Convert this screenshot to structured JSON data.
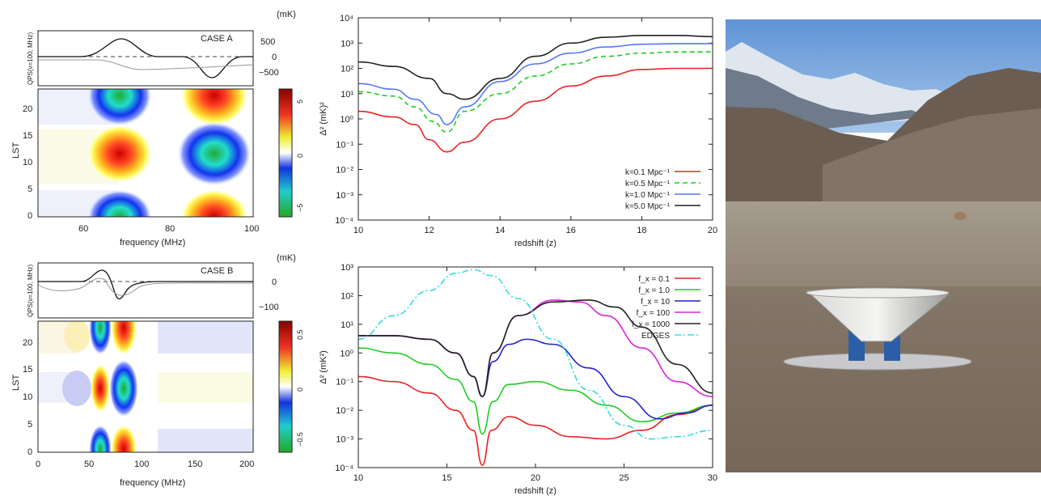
{
  "panels": {
    "tl": {
      "line_label": "CASE A",
      "unit": "(mK)",
      "line_ylabel": "QPS(ν=100, MHz)",
      "line_ticks": [
        "500",
        "0",
        "−500"
      ],
      "heat_ylabel": "LST",
      "heat_yticks": [
        "20",
        "15",
        "10",
        "5",
        "0"
      ],
      "xticks": [
        "60",
        "80",
        "100"
      ],
      "colorbar_ticks": [
        "5",
        "0",
        "−5"
      ],
      "xlabel": "frequency (MHz)"
    },
    "bl": {
      "line_label": "CASE B",
      "unit": "(mK)",
      "line_ylabel": "QPS(ν=100, MHz)",
      "line_ticks": [
        "0",
        "−100"
      ],
      "heat_ylabel": "LST",
      "heat_yticks": [
        "20",
        "15",
        "10",
        "5",
        "0"
      ],
      "xticks": [
        "0",
        "50",
        "100",
        "150",
        "200"
      ],
      "colorbar_ticks": [
        "0.5",
        "0",
        "−0.5"
      ],
      "xlabel": "frequency (MHz)"
    }
  },
  "chart_data": [
    {
      "type": "line",
      "xlabel": "redshift (z)",
      "ylabel": "Δ² (mK)²",
      "xlim": [
        10,
        20
      ],
      "ylim": [
        0.0001,
        10000
      ],
      "yscale": "log",
      "xticks": [
        "10",
        "12",
        "14",
        "16",
        "18",
        "20"
      ],
      "yticks": [
        "10⁻⁴",
        "10⁻³",
        "10⁻²",
        "10⁻¹",
        "10⁰",
        "10¹",
        "10²",
        "10³",
        "10⁴"
      ],
      "legend_position": "bottom-right",
      "series": [
        {
          "name": "k=0.1 Mpc⁻¹",
          "color": "#ee2222",
          "dash": "solid",
          "x": [
            10,
            11,
            11.6,
            12,
            12.5,
            13,
            14,
            15,
            16,
            17,
            18,
            19,
            20
          ],
          "y": [
            2,
            1.2,
            0.6,
            0.15,
            0.05,
            0.12,
            1,
            5,
            20,
            50,
            90,
            100,
            100
          ]
        },
        {
          "name": "k=0.5 Mpc⁻¹",
          "color": "#22cc22",
          "dash": "dashed",
          "x": [
            10,
            11,
            11.6,
            12.1,
            12.5,
            13,
            14,
            15,
            16,
            17,
            18,
            19,
            20
          ],
          "y": [
            12,
            8,
            3,
            0.8,
            0.3,
            2,
            10,
            50,
            150,
            300,
            400,
            450,
            450
          ]
        },
        {
          "name": "k=1.0 Mpc⁻¹",
          "color": "#5577ff",
          "dash": "solid",
          "x": [
            10,
            11,
            11.6,
            12.2,
            12.5,
            13,
            14,
            15,
            16,
            17,
            18,
            19,
            20
          ],
          "y": [
            25,
            15,
            6,
            1.5,
            0.6,
            3,
            30,
            150,
            400,
            700,
            900,
            950,
            950
          ]
        },
        {
          "name": "k=5.0 Mpc⁻¹",
          "color": "#222222",
          "dash": "solid",
          "x": [
            10,
            11,
            12,
            12.5,
            13,
            14,
            15,
            16,
            17,
            18,
            19,
            20
          ],
          "y": [
            180,
            120,
            40,
            10,
            6,
            40,
            300,
            1000,
            1700,
            2000,
            2000,
            1800
          ]
        }
      ]
    },
    {
      "type": "line",
      "xlabel": "redshift (z)",
      "ylabel": "Δ² (mK²)",
      "xlim": [
        10,
        30
      ],
      "ylim": [
        0.0001,
        1000
      ],
      "yscale": "log",
      "xticks": [
        "10",
        "15",
        "20",
        "25",
        "30"
      ],
      "yticks": [
        "10⁻⁴",
        "10⁻³",
        "10⁻²",
        "10⁻¹",
        "10⁰",
        "10¹",
        "10²",
        "10³"
      ],
      "legend_position": "top-right",
      "series": [
        {
          "name": "f_x = 0.1",
          "color": "#ee2222",
          "dash": "solid",
          "x": [
            10,
            12,
            14,
            15.5,
            16.5,
            17,
            17.5,
            18.5,
            20,
            22,
            24,
            26,
            28,
            30
          ],
          "y": [
            0.15,
            0.1,
            0.04,
            0.01,
            0.002,
            0.00012,
            0.002,
            0.006,
            0.003,
            0.0012,
            0.001,
            0.002,
            0.007,
            0.015
          ]
        },
        {
          "name": "f_x = 1.0",
          "color": "#22cc22",
          "dash": "solid",
          "x": [
            10,
            12,
            14,
            15.5,
            16.5,
            17,
            17.6,
            18.5,
            20,
            22,
            24,
            26,
            28,
            30
          ],
          "y": [
            1.5,
            1,
            0.4,
            0.12,
            0.02,
            0.0015,
            0.02,
            0.08,
            0.1,
            0.05,
            0.015,
            0.004,
            0.008,
            0.015
          ]
        },
        {
          "name": "f_x = 10",
          "color": "#2222cc",
          "dash": "solid",
          "x": [
            10,
            12,
            14,
            15.5,
            16.5,
            17,
            17.6,
            18.5,
            19.5,
            21,
            23,
            25,
            27,
            28.5,
            30
          ],
          "y": [
            4,
            4,
            3,
            1,
            0.15,
            0.03,
            0.5,
            2,
            3,
            2,
            0.3,
            0.03,
            0.005,
            0.008,
            0.015
          ]
        },
        {
          "name": "f_x = 100",
          "color": "#dd22dd",
          "dash": "solid",
          "x": [
            10,
            12,
            14,
            15.5,
            16.5,
            17,
            17.6,
            19,
            21,
            22.5,
            24,
            26,
            28,
            30
          ],
          "y": [
            4,
            4,
            3,
            1,
            0.15,
            0.03,
            1,
            20,
            70,
            60,
            20,
            1.5,
            0.1,
            0.03
          ]
        },
        {
          "name": "f_x = 1000",
          "color": "#222222",
          "dash": "solid",
          "x": [
            10,
            12,
            14,
            15.5,
            16.5,
            17,
            17.6,
            19,
            21,
            23,
            24.5,
            26,
            28,
            30
          ],
          "y": [
            4,
            4,
            3,
            1,
            0.15,
            0.03,
            1,
            20,
            60,
            70,
            40,
            8,
            0.4,
            0.04
          ]
        },
        {
          "name": "EDGES",
          "color": "#33dddd",
          "dash": "dashdot",
          "x": [
            10,
            12,
            14,
            15.5,
            16.5,
            17.5,
            19,
            21,
            23,
            25,
            26.5,
            28,
            30
          ],
          "y": [
            3,
            20,
            150,
            600,
            800,
            500,
            80,
            3,
            0.05,
            0.003,
            0.001,
            0.0012,
            0.002
          ]
        }
      ]
    }
  ]
}
